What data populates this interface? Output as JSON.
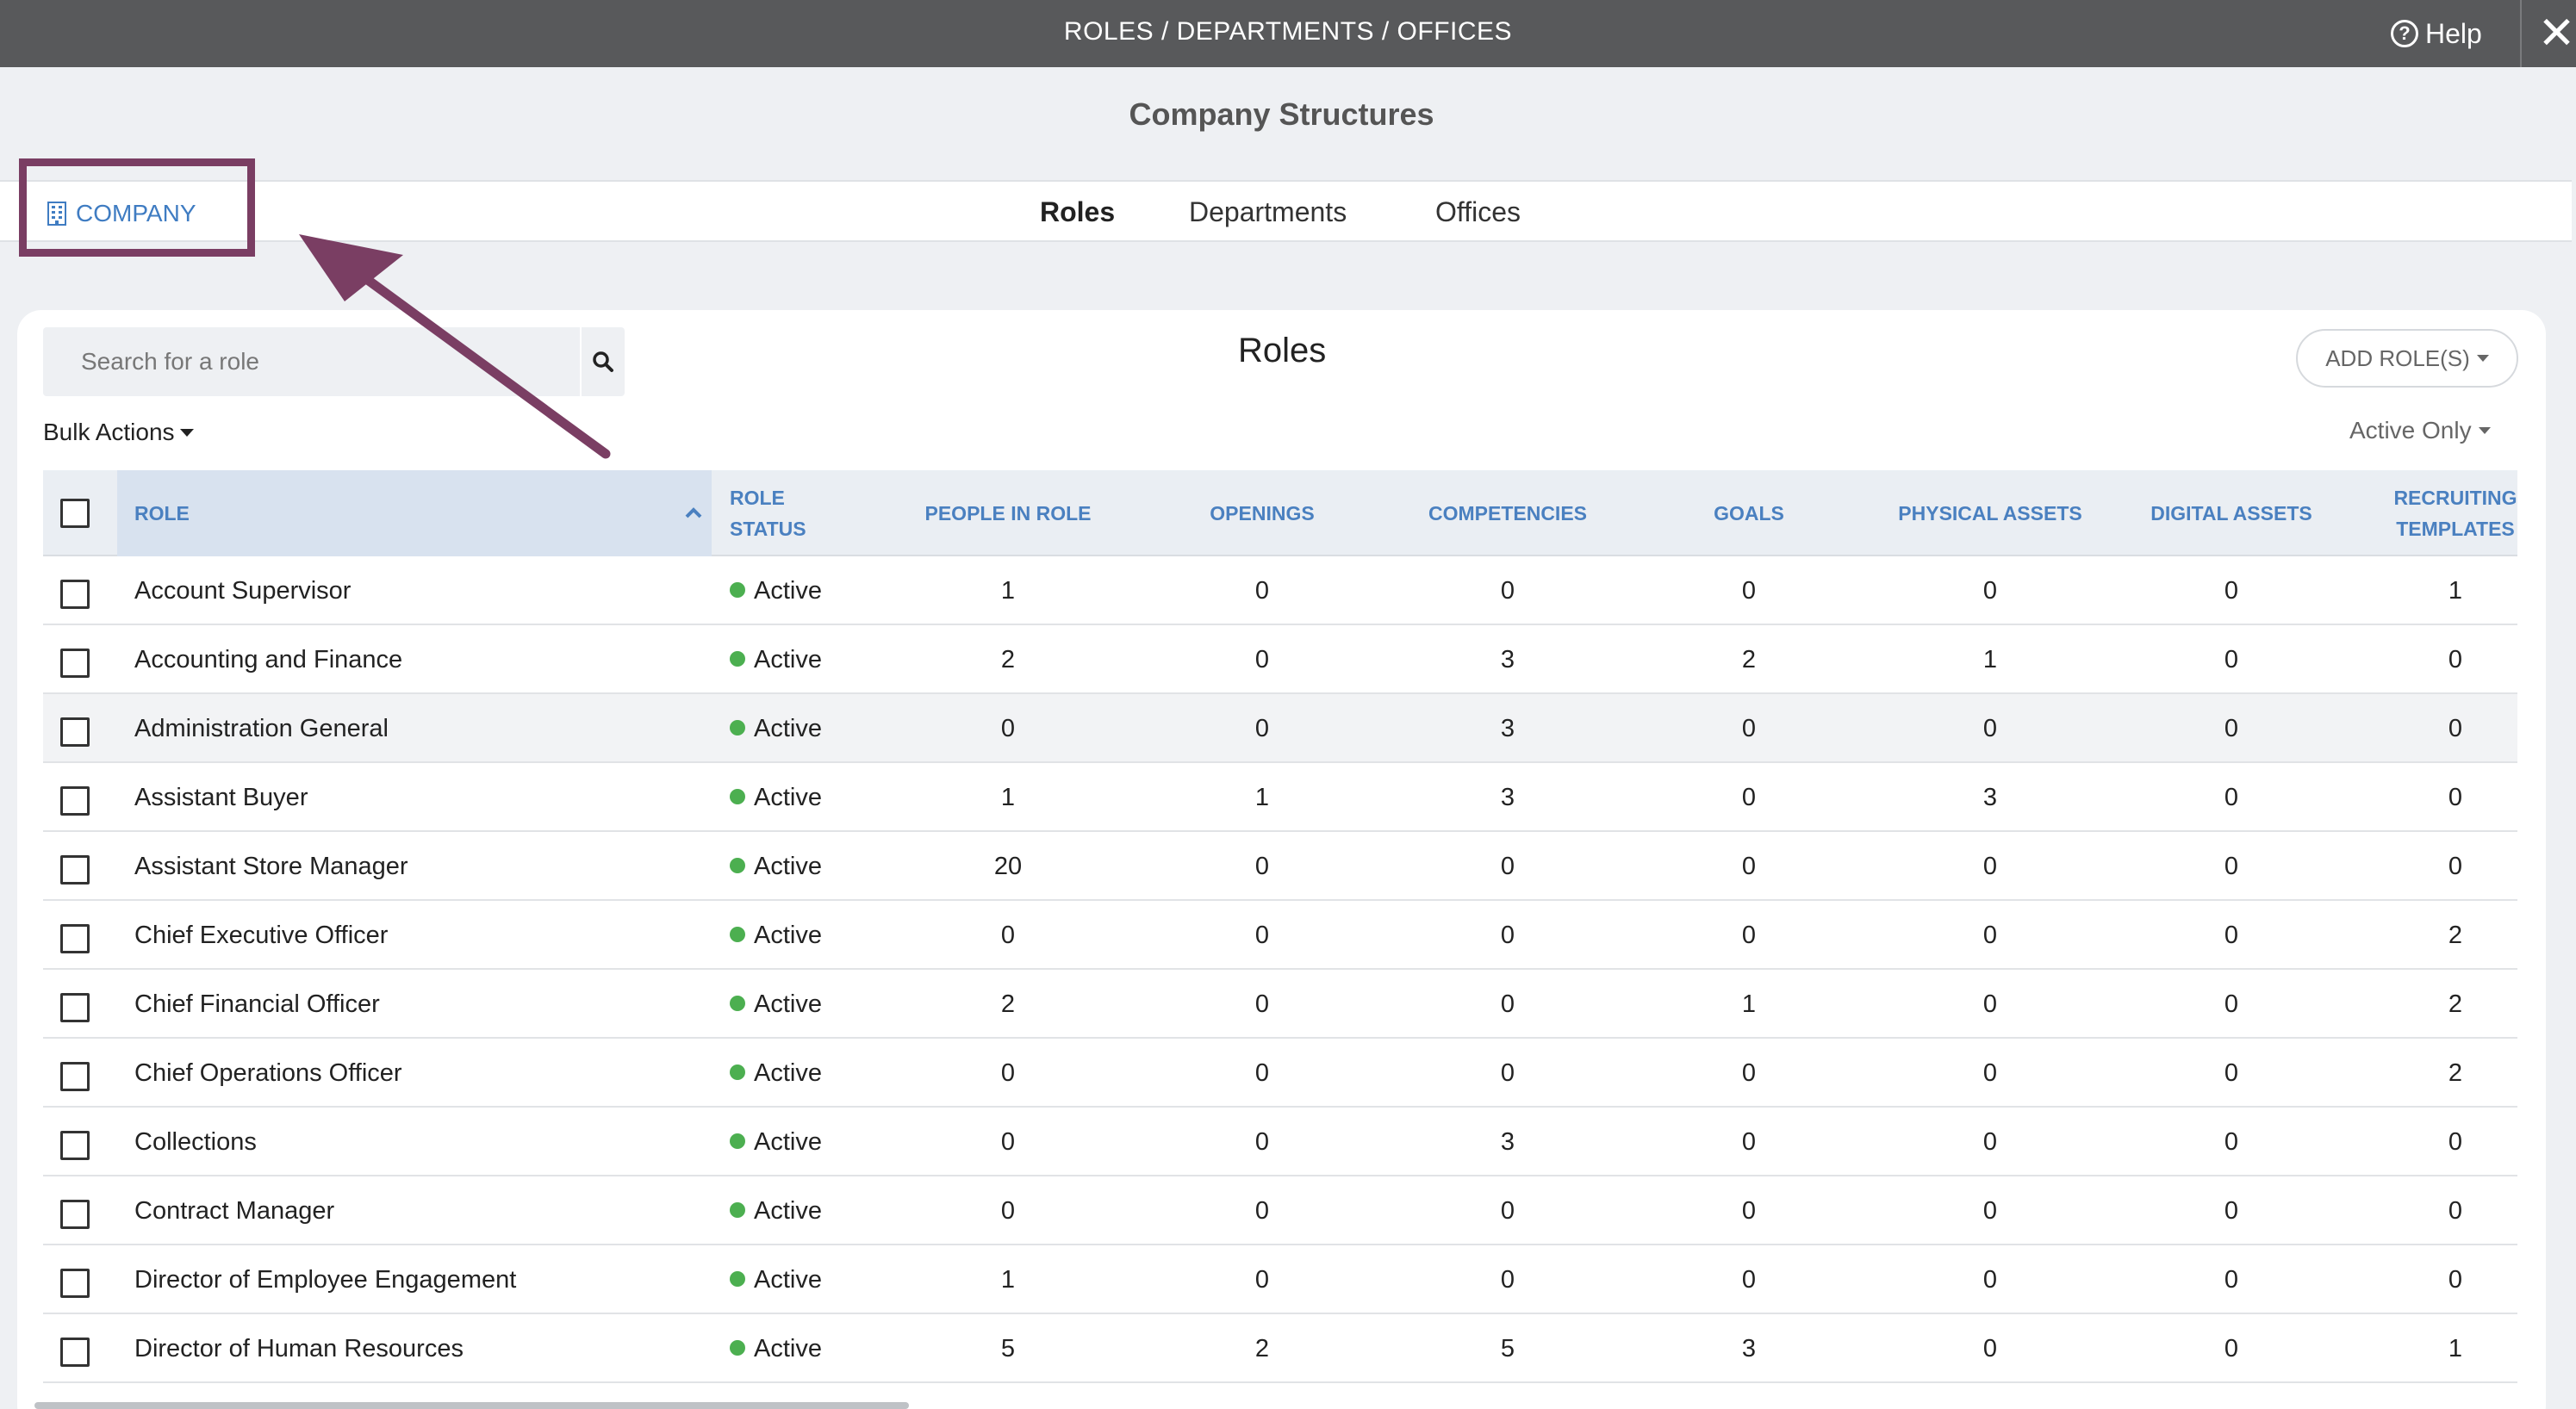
{
  "topbar": {
    "breadcrumb": "ROLES / DEPARTMENTS / OFFICES",
    "help_label": "Help",
    "close_symbol": "✕"
  },
  "header": {
    "page_title": "Company Structures",
    "company_link": "COMPANY",
    "tabs": [
      {
        "label": "Roles",
        "active": true
      },
      {
        "label": "Departments",
        "active": false
      },
      {
        "label": "Offices",
        "active": false
      }
    ]
  },
  "card": {
    "title": "Roles",
    "search_placeholder": "Search for a role",
    "add_role_label": "ADD ROLE(S)",
    "bulk_actions_label": "Bulk Actions",
    "filter_label": "Active Only"
  },
  "table": {
    "columns": {
      "role": "ROLE",
      "role_status_1": "ROLE",
      "role_status_2": "STATUS",
      "people": "PEOPLE IN ROLE",
      "openings": "OPENINGS",
      "competencies": "COMPETENCIES",
      "goals": "GOALS",
      "physical_assets": "PHYSICAL ASSETS",
      "digital_assets": "DIGITAL ASSETS",
      "recruiting_1": "RECRUITING",
      "recruiting_2": "TEMPLATES"
    },
    "rows": [
      {
        "role": "Account Supervisor",
        "status": "Active",
        "people": "1",
        "openings": "0",
        "competencies": "0",
        "goals": "0",
        "physical": "0",
        "digital": "0",
        "recruiting": "1"
      },
      {
        "role": "Accounting and Finance",
        "status": "Active",
        "people": "2",
        "openings": "0",
        "competencies": "3",
        "goals": "2",
        "physical": "1",
        "digital": "0",
        "recruiting": "0"
      },
      {
        "role": "Administration General",
        "status": "Active",
        "people": "0",
        "openings": "0",
        "competencies": "3",
        "goals": "0",
        "physical": "0",
        "digital": "0",
        "recruiting": "0"
      },
      {
        "role": "Assistant Buyer",
        "status": "Active",
        "people": "1",
        "openings": "1",
        "competencies": "3",
        "goals": "0",
        "physical": "3",
        "digital": "0",
        "recruiting": "0"
      },
      {
        "role": "Assistant Store Manager",
        "status": "Active",
        "people": "20",
        "openings": "0",
        "competencies": "0",
        "goals": "0",
        "physical": "0",
        "digital": "0",
        "recruiting": "0"
      },
      {
        "role": "Chief Executive Officer",
        "status": "Active",
        "people": "0",
        "openings": "0",
        "competencies": "0",
        "goals": "0",
        "physical": "0",
        "digital": "0",
        "recruiting": "2"
      },
      {
        "role": "Chief Financial Officer",
        "status": "Active",
        "people": "2",
        "openings": "0",
        "competencies": "0",
        "goals": "1",
        "physical": "0",
        "digital": "0",
        "recruiting": "2"
      },
      {
        "role": "Chief Operations Officer",
        "status": "Active",
        "people": "0",
        "openings": "0",
        "competencies": "0",
        "goals": "0",
        "physical": "0",
        "digital": "0",
        "recruiting": "2"
      },
      {
        "role": "Collections",
        "status": "Active",
        "people": "0",
        "openings": "0",
        "competencies": "3",
        "goals": "0",
        "physical": "0",
        "digital": "0",
        "recruiting": "0"
      },
      {
        "role": "Contract Manager",
        "status": "Active",
        "people": "0",
        "openings": "0",
        "competencies": "0",
        "goals": "0",
        "physical": "0",
        "digital": "0",
        "recruiting": "0"
      },
      {
        "role": "Director of Employee Engagement",
        "status": "Active",
        "people": "1",
        "openings": "0",
        "competencies": "0",
        "goals": "0",
        "physical": "0",
        "digital": "0",
        "recruiting": "0"
      },
      {
        "role": "Director of Human Resources",
        "status": "Active",
        "people": "5",
        "openings": "2",
        "competencies": "5",
        "goals": "3",
        "physical": "0",
        "digital": "0",
        "recruiting": "1"
      }
    ]
  },
  "colors": {
    "topbar": "#58595b",
    "accent_blue": "#4a80c0",
    "annotation": "#7a3e63",
    "status_active": "#4caf50"
  }
}
